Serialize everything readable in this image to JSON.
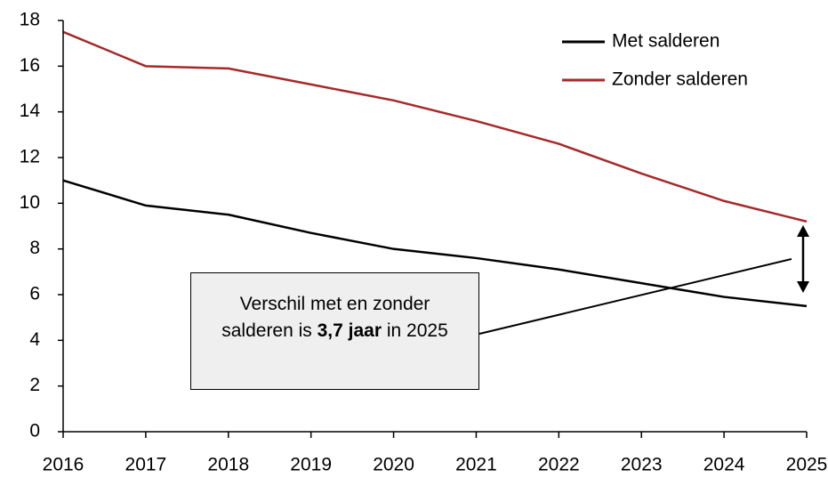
{
  "chart_data": {
    "type": "line",
    "x": [
      2016,
      2017,
      2018,
      2019,
      2020,
      2021,
      2022,
      2023,
      2024,
      2025
    ],
    "series": [
      {
        "name": "Met salderen",
        "color": "#000000",
        "values": [
          11.0,
          9.9,
          9.5,
          8.7,
          8.0,
          7.6,
          7.1,
          6.5,
          5.9,
          5.5
        ]
      },
      {
        "name": "Zonder salderen",
        "color": "#a52a2a",
        "values": [
          17.5,
          16.0,
          15.9,
          15.2,
          14.5,
          13.6,
          12.6,
          11.3,
          10.1,
          9.2
        ]
      }
    ],
    "xlim": [
      2016,
      2025
    ],
    "xticks": [
      2016,
      2017,
      2018,
      2019,
      2020,
      2021,
      2022,
      2023,
      2024,
      2025
    ],
    "ylim": [
      0,
      18
    ],
    "yticks": [
      0,
      2,
      4,
      6,
      8,
      10,
      12,
      14,
      16,
      18
    ],
    "grid": false,
    "legend": "upper right",
    "annotation": {
      "text_before": "Verschil met en zonder salderen is ",
      "bold": "3,7 jaar",
      "text_after": " in 2025"
    }
  }
}
